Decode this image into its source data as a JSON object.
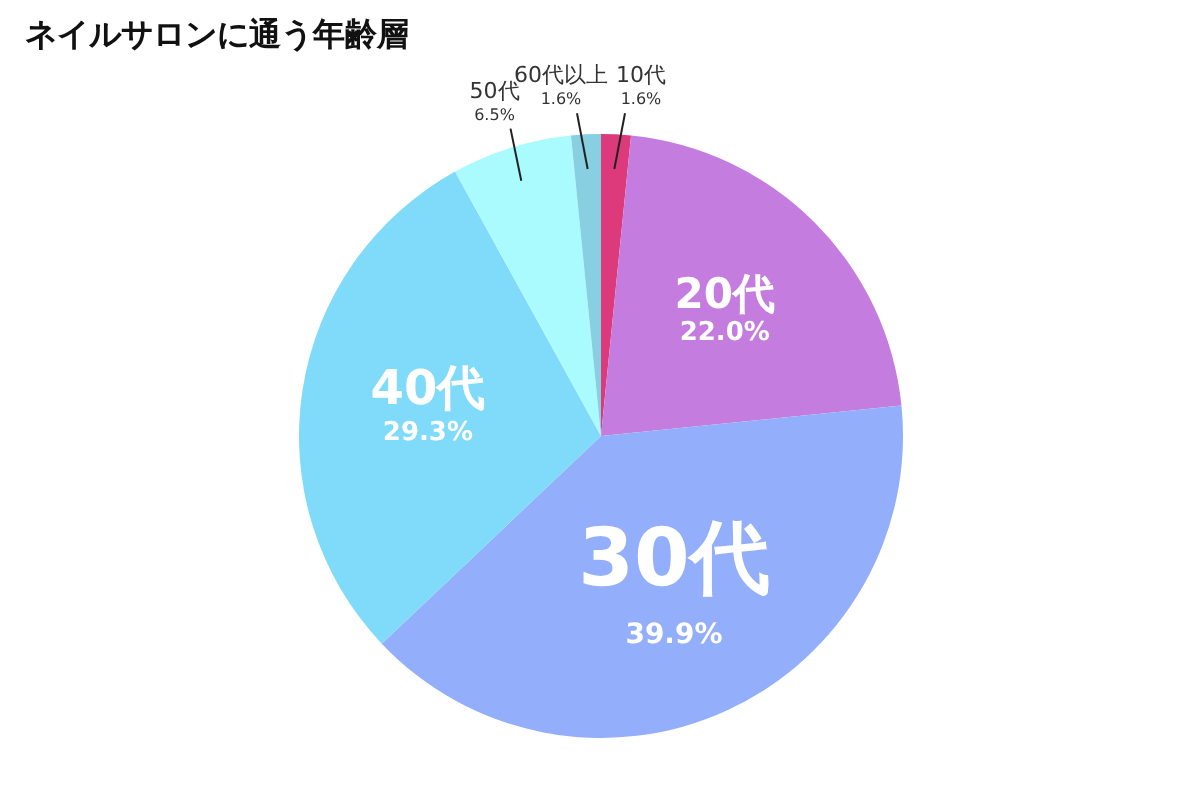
{
  "chart_data": {
    "type": "pie",
    "title": "ネイルサロンに通う年齢層",
    "categories": [
      "10代",
      "20代",
      "30代",
      "40代",
      "50代",
      "60代以上"
    ],
    "values": [
      1.6,
      22.0,
      39.9,
      29.3,
      6.5,
      1.6
    ],
    "value_labels": [
      "1.6%",
      "22.0%",
      "39.9%",
      "29.3%",
      "6.5%",
      "1.6%"
    ],
    "colors": [
      "#dd3a7c",
      "#c47ddf",
      "#93aefb",
      "#80dbfa",
      "#a9fbfe",
      "#87cfe1"
    ]
  }
}
